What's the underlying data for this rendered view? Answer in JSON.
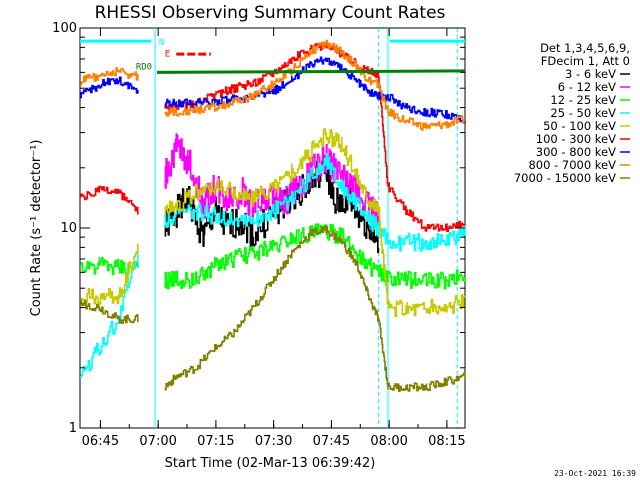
{
  "chart_data": {
    "type": "line",
    "title": "RHESSI Observing Summary Count Rates",
    "xlabel": "Start Time (02-Mar-13 06:39:42)",
    "ylabel": "Count Rate (s⁻¹ detector⁻¹)",
    "y_scale": "log",
    "ylim": [
      1,
      100
    ],
    "xlim_minutes": [
      0,
      100
    ],
    "x_ticks": [
      {
        "minute": 5.3,
        "label": "06:45"
      },
      {
        "minute": 20.3,
        "label": "07:00"
      },
      {
        "minute": 35.3,
        "label": "07:15"
      },
      {
        "minute": 50.3,
        "label": "07:30"
      },
      {
        "minute": 65.3,
        "label": "07:45"
      },
      {
        "minute": 80.3,
        "label": "08:00"
      },
      {
        "minute": 95.3,
        "label": "08:15"
      }
    ],
    "y_ticks": [
      {
        "value": 1,
        "label": "1"
      },
      {
        "value": 10,
        "label": "10"
      },
      {
        "value": 100,
        "label": "100"
      }
    ],
    "legend_header": [
      "Det 1,3,4,5,6,9,",
      "FDecim 1, Att 0"
    ],
    "legend_placement": "right",
    "series": [
      {
        "name": "3 - 6 keV",
        "color": "#000000",
        "x": [
          0,
          10,
          15,
          19.5,
          22,
          25,
          28,
          32,
          35,
          38,
          42,
          45,
          50,
          53,
          56,
          60,
          64,
          66,
          70,
          72,
          75,
          77.5,
          80,
          85,
          90,
          95,
          100
        ],
        "y": [
          null,
          null,
          null,
          null,
          10,
          12,
          14,
          9,
          12,
          10,
          11,
          9,
          12,
          13,
          15,
          17,
          20,
          13,
          14,
          12,
          10,
          8,
          null,
          null,
          null,
          null,
          null
        ]
      },
      {
        "name": "6 - 12 keV",
        "color": "#ff00ff",
        "x": [
          0,
          10,
          15,
          19.5,
          22,
          25,
          28,
          32,
          35,
          38,
          42,
          45,
          50,
          53,
          56,
          60,
          64,
          66,
          70,
          72,
          75,
          77.5,
          80,
          85,
          90,
          95,
          100
        ],
        "y": [
          null,
          null,
          null,
          null,
          18,
          25,
          22,
          13,
          16,
          14,
          15,
          13,
          14,
          13,
          16,
          19,
          22,
          20,
          16,
          15,
          13,
          11,
          null,
          null,
          null,
          null,
          null
        ]
      },
      {
        "name": "12 - 25 keV",
        "color": "#00ff00",
        "x": [
          0,
          5,
          10,
          15,
          19.5,
          22,
          25,
          30,
          35,
          40,
          45,
          50,
          55,
          60,
          64,
          68,
          72,
          75,
          77.5,
          80,
          85,
          90,
          95,
          100
        ],
        "y": [
          6.5,
          6.5,
          6.3,
          6.3,
          null,
          5.5,
          5.5,
          5.5,
          6.5,
          7,
          7.5,
          8,
          9,
          9.5,
          9.7,
          9,
          7.5,
          6.5,
          6,
          5.5,
          5.5,
          5.5,
          5.5,
          5.8
        ]
      },
      {
        "name": "25 - 50 keV",
        "color": "#00ffff",
        "x": [
          0,
          5,
          10,
          15,
          19.5,
          22,
          25,
          30,
          35,
          40,
          45,
          50,
          55,
          60,
          64,
          68,
          72,
          75,
          77.5,
          80,
          85,
          90,
          95,
          100
        ],
        "y": [
          1.8,
          2.5,
          3.5,
          7.5,
          null,
          11,
          11.5,
          12,
          11.5,
          11,
          11,
          12,
          14,
          18,
          22,
          16,
          13,
          11,
          10,
          8.5,
          8.5,
          8.5,
          8.5,
          9.5
        ]
      },
      {
        "name": "50 - 100 keV",
        "color": "#c8c800",
        "x": [
          0,
          5,
          10,
          15,
          19.5,
          22,
          25,
          30,
          35,
          40,
          45,
          50,
          55,
          60,
          64,
          68,
          72,
          75,
          77.5,
          80,
          85,
          90,
          95,
          100
        ],
        "y": [
          4.5,
          4.5,
          4.5,
          8,
          null,
          12.5,
          13,
          15,
          16,
          15,
          14,
          16,
          19,
          24,
          29,
          26,
          18,
          14,
          12.5,
          4,
          4,
          4,
          4,
          4.3
        ]
      },
      {
        "name": "100 - 300 keV",
        "color": "#ff0000",
        "x": [
          0,
          5,
          10,
          15,
          19.5,
          22,
          25,
          30,
          35,
          40,
          45,
          50,
          55,
          60,
          64,
          68,
          72,
          75,
          77.5,
          80,
          85,
          90,
          95,
          100
        ],
        "y": [
          14,
          15.5,
          15,
          12,
          null,
          39,
          40,
          42,
          46,
          50,
          53,
          60,
          70,
          78,
          82,
          74,
          66,
          61,
          58,
          16,
          12,
          10,
          10,
          10.5
        ]
      },
      {
        "name": "300 - 800 keV",
        "color": "#0000ff",
        "x": [
          0,
          5,
          10,
          15,
          19.5,
          22,
          25,
          30,
          35,
          40,
          45,
          50,
          55,
          60,
          64,
          68,
          72,
          75,
          77.5,
          80,
          85,
          90,
          95,
          100
        ],
        "y": [
          46,
          52,
          55,
          48,
          null,
          42,
          42,
          42,
          43,
          44,
          45,
          48,
          56,
          65,
          70,
          62,
          54,
          48,
          46,
          45,
          40,
          38,
          37,
          34
        ]
      },
      {
        "name": "800 - 7000 keV",
        "color": "#ff8000",
        "x": [
          0,
          5,
          10,
          15,
          19.5,
          22,
          25,
          30,
          35,
          40,
          45,
          50,
          55,
          60,
          64,
          68,
          72,
          75,
          77.5,
          80,
          85,
          90,
          95,
          100
        ],
        "y": [
          54,
          58,
          61,
          57,
          null,
          38,
          38,
          39,
          40,
          42,
          46,
          52,
          62,
          77,
          83,
          76,
          64,
          55,
          52,
          38,
          34,
          32,
          33,
          35
        ]
      },
      {
        "name": "7000 - 15000 keV",
        "color": "#808000",
        "x": [
          0,
          5,
          10,
          15,
          19.5,
          22,
          25,
          30,
          35,
          40,
          45,
          50,
          55,
          60,
          64,
          68,
          72,
          75,
          77.5,
          80,
          85,
          90,
          95,
          100
        ],
        "y": [
          4.2,
          4,
          3.5,
          3.5,
          null,
          1.6,
          1.8,
          2,
          2.5,
          3,
          4,
          5.5,
          7.5,
          9.5,
          9.8,
          8.5,
          6.5,
          4.5,
          3.5,
          1.6,
          1.6,
          1.6,
          1.7,
          1.8
        ]
      }
    ],
    "flags": [
      {
        "label": "RD0",
        "color": "#008000"
      },
      {
        "label": "N",
        "color": "#00ffff"
      },
      {
        "label": "E",
        "color": "#ff0000"
      }
    ]
  },
  "footer": {
    "date_stamp": "23-Oct-2021 16:39"
  }
}
